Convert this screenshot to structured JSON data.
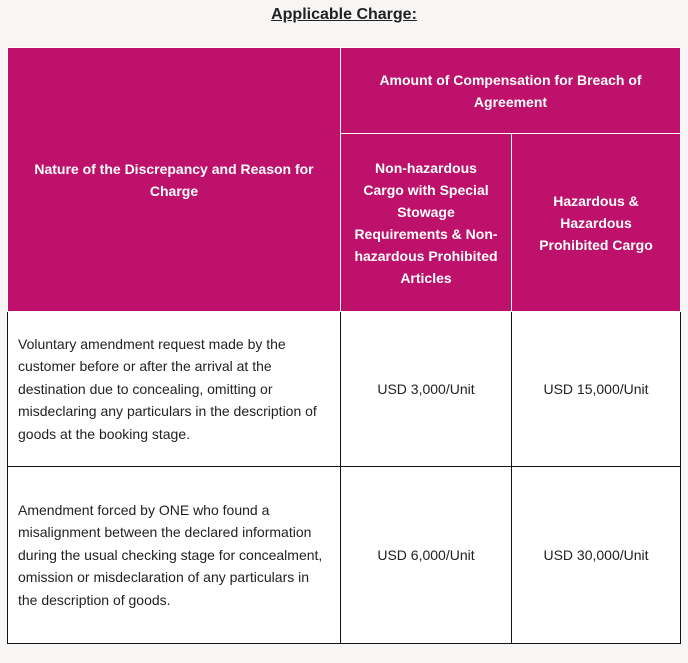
{
  "title": "Applicable Charge:",
  "colors": {
    "header_bg": "#bd116c",
    "header_text": "#ffffff",
    "page_bg": "#f7f6f4"
  },
  "table": {
    "header": {
      "nature": "Nature of the Discrepancy and Reason for Charge",
      "compensation": "Amount of Compensation for Breach of Agreement",
      "non_hazardous": "Non-hazardous Cargo with Special Stowage Requirements & Non-hazardous Prohibited Articles",
      "hazardous": "Hazardous & Hazardous Prohibited Cargo"
    },
    "rows": [
      {
        "nature": "Voluntary amendment request made by the customer before or after the arrival at the destination due to concealing, omitting or misdeclaring any particulars in the description of goods at the booking stage.",
        "non_hazardous": "USD 3,000/Unit",
        "hazardous": "USD 15,000/Unit"
      },
      {
        "nature": "Amendment forced by ONE who found a misalignment between the declared information during the usual checking stage for concealment, omission or misdeclaration of any particulars in the description of goods.",
        "non_hazardous": "USD 6,000/Unit",
        "hazardous": "USD 30,000/Unit"
      }
    ]
  }
}
